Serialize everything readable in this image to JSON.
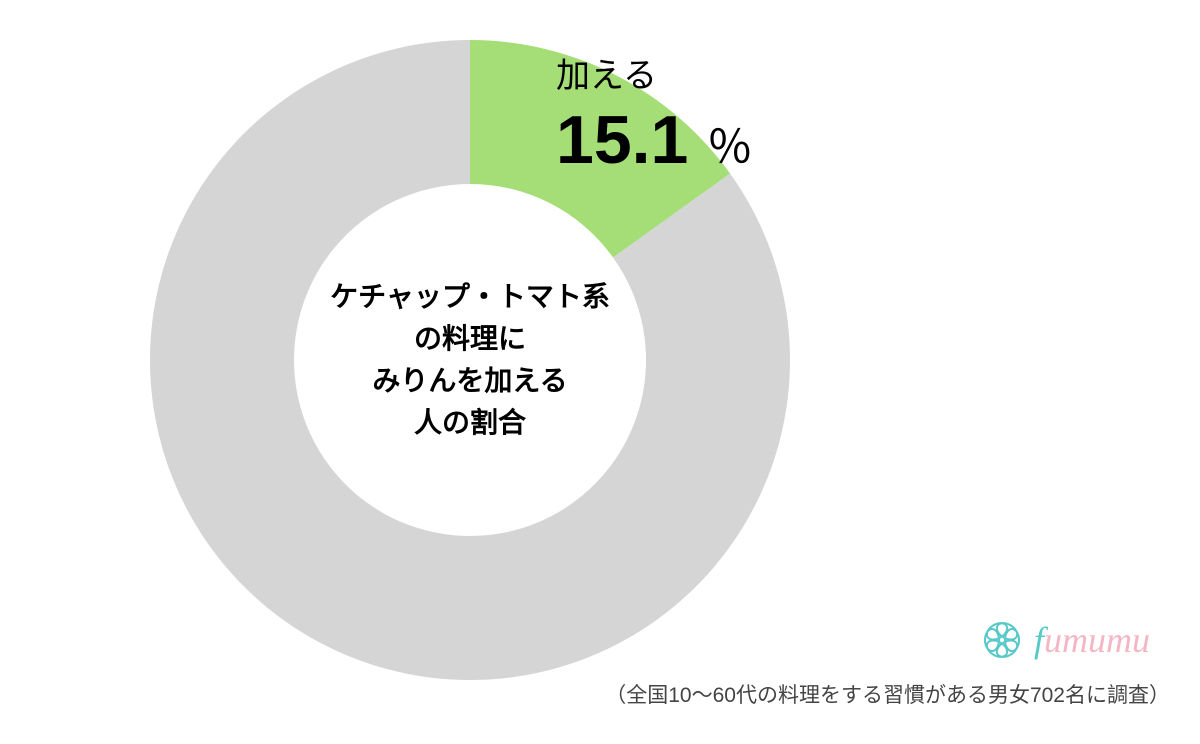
{
  "chart": {
    "type": "donut",
    "value_percent": 15.1,
    "center_text_lines": [
      "ケチャップ・トマト系",
      "の料理に",
      "みりんを加える",
      "人の割合"
    ],
    "slice_label": "加える",
    "slice_value": "15.1",
    "slice_unit": "％",
    "slice_color": "#a5de77",
    "rest_color": "#d5d5d5",
    "background_color": "#ffffff",
    "inner_radius_ratio": 0.55,
    "outer_radius": 320,
    "start_angle_deg": 0
  },
  "logo": {
    "brand_first": "f",
    "brand_rest": "umumu",
    "icon_color": "#56c9c8"
  },
  "source": "（全国10～60代の料理をする習慣がある男女702名に调査）",
  "source_actual": "（全国10～60代の料理をする習慣がある男女702名に調査）"
}
